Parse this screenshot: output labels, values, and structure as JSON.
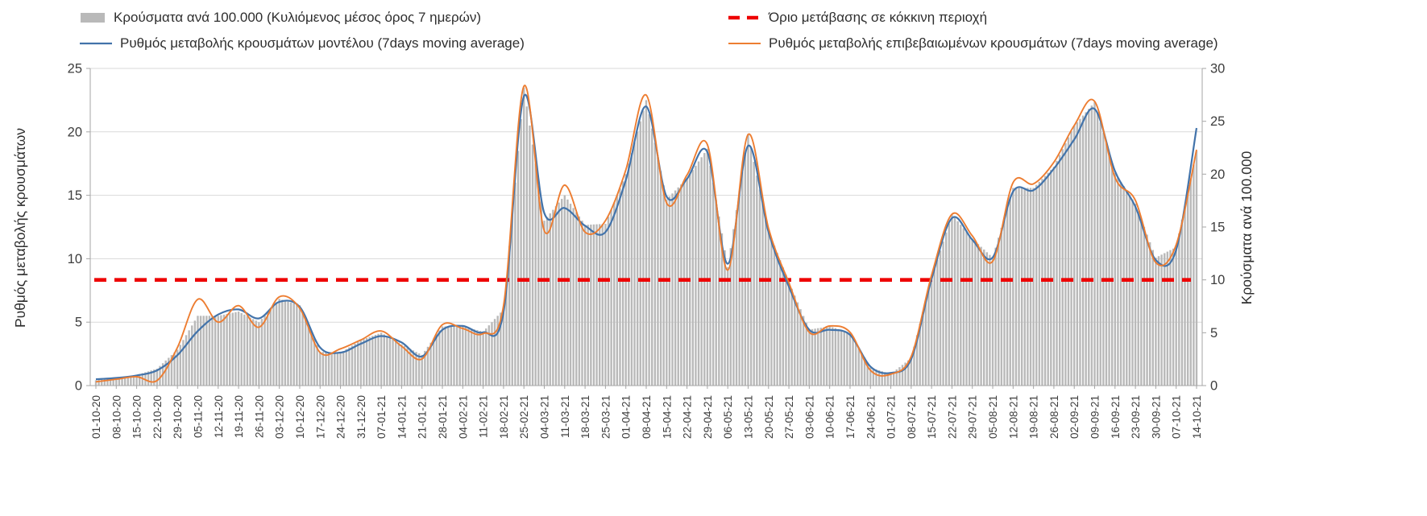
{
  "colors": {
    "bars": "#b9b9b9",
    "model": "#4273aa",
    "confirmed": "#ed7d31",
    "threshold": "#ee0000",
    "grid": "#d9d9d9",
    "axis": "#a6a6a6",
    "text": "#3d3d3d"
  },
  "chart_data": {
    "type": "bar",
    "subtype": "dual-axis combo: daily gray bars (right axis) + two 7-day moving-average line series (left axis) + red dashed threshold line",
    "note": "Values are estimated from the plot at weekly tick resolution; bars are daily and interpolated between weekly keypoints.",
    "legend_position": "top",
    "grid": "horizontal",
    "x_label_rotation": -90,
    "ylabel_left": "Ρυθμός μεταβολής κρουσμάτων",
    "ylabel_right": "Κρούσματα ανά 100.000",
    "ylim_left": [
      0,
      25
    ],
    "ylim_right": [
      0,
      30
    ],
    "yticks_left": [
      0,
      5,
      10,
      15,
      20,
      25
    ],
    "yticks_right": [
      0,
      5,
      10,
      15,
      20,
      25,
      30
    ],
    "categories": [
      "01-10-20",
      "08-10-20",
      "15-10-20",
      "22-10-20",
      "29-10-20",
      "05-11-20",
      "12-11-20",
      "19-11-20",
      "26-11-20",
      "03-12-20",
      "10-12-20",
      "17-12-20",
      "24-12-20",
      "31-12-20",
      "07-01-21",
      "14-01-21",
      "21-01-21",
      "28-01-21",
      "04-02-21",
      "11-02-21",
      "18-02-21",
      "25-02-21",
      "04-03-21",
      "11-03-21",
      "18-03-21",
      "25-03-21",
      "01-04-21",
      "08-04-21",
      "15-04-21",
      "22-04-21",
      "29-04-21",
      "06-05-21",
      "13-05-21",
      "20-05-21",
      "27-05-21",
      "03-06-21",
      "10-06-21",
      "17-06-21",
      "24-06-21",
      "01-07-21",
      "08-07-21",
      "15-07-21",
      "22-07-21",
      "29-07-21",
      "05-08-21",
      "12-08-21",
      "19-08-21",
      "26-08-21",
      "02-09-21",
      "09-09-21",
      "16-09-21",
      "23-09-21",
      "30-09-21",
      "07-10-21",
      "14-10-21"
    ],
    "series": [
      {
        "key": "bars",
        "name": "Κρούσματα ανά 100.000 (Κυλιόμενος μέσος όρος 7 ημερών)",
        "type": "bar",
        "axis": "right",
        "values": [
          0.5,
          0.7,
          1.0,
          1.6,
          3.4,
          6.6,
          6.6,
          7.0,
          6.0,
          8.2,
          7.6,
          3.2,
          3.1,
          4.3,
          5.0,
          3.9,
          2.9,
          5.6,
          5.6,
          5.1,
          7.2,
          28.2,
          15.6,
          18.0,
          15.2,
          15.3,
          20.0,
          27.0,
          17.6,
          19.6,
          22.4,
          11.2,
          23.8,
          14.6,
          9.8,
          5.3,
          5.6,
          5.0,
          1.7,
          1.1,
          2.6,
          10.2,
          16.2,
          13.9,
          12.1,
          18.7,
          18.7,
          20.7,
          24.6,
          26.8,
          20.1,
          17.2,
          12.1,
          13.1,
          22.2
        ]
      },
      {
        "key": "model",
        "name": "Ρυθμός μεταβολής κρουσμάτων μοντέλου (7days moving average)",
        "type": "line",
        "axis": "left",
        "values": [
          0.5,
          0.6,
          0.8,
          1.2,
          2.4,
          4.3,
          5.6,
          6.0,
          5.3,
          6.6,
          6.2,
          3.0,
          2.6,
          3.3,
          3.9,
          3.4,
          2.3,
          4.4,
          4.7,
          4.2,
          5.8,
          22.8,
          13.6,
          14.0,
          12.6,
          12.1,
          16.2,
          22.0,
          14.9,
          16.3,
          18.4,
          9.6,
          18.9,
          12.1,
          7.8,
          4.4,
          4.4,
          4.0,
          1.5,
          1.0,
          2.1,
          8.4,
          13.2,
          11.5,
          10.1,
          15.3,
          15.4,
          17.1,
          19.4,
          21.8,
          16.9,
          14.1,
          9.9,
          10.7,
          20.3
        ]
      },
      {
        "key": "confirmed",
        "name": "Ρυθμός μεταβολής επιβεβαιωμένων κρουσμάτων (7days moving average)",
        "type": "line",
        "axis": "left",
        "values": [
          0.3,
          0.5,
          0.7,
          0.4,
          3.0,
          6.8,
          5.0,
          6.3,
          4.6,
          7.0,
          6.1,
          2.6,
          2.9,
          3.6,
          4.3,
          3.1,
          2.1,
          4.8,
          4.5,
          4.1,
          6.3,
          23.6,
          12.2,
          15.8,
          12.1,
          13.0,
          17.0,
          22.9,
          14.4,
          16.6,
          19.0,
          9.1,
          19.8,
          12.4,
          8.1,
          4.2,
          4.7,
          4.2,
          1.2,
          0.9,
          2.3,
          8.7,
          13.5,
          11.8,
          9.8,
          16.0,
          15.9,
          17.6,
          20.5,
          22.4,
          16.4,
          14.6,
          9.7,
          11.1,
          18.6
        ]
      }
    ],
    "threshold": {
      "name": "Όριο μετάβασης σε κόκκινη περιοχή",
      "axis": "right",
      "value": 10,
      "style": "dashed"
    }
  }
}
